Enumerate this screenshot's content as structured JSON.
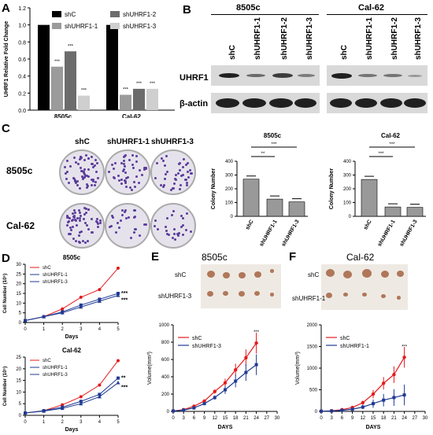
{
  "panels": {
    "A": "A",
    "B": "B",
    "C": "C",
    "D": "D",
    "E": "E",
    "F": "F"
  },
  "chart_a": {
    "type": "bar",
    "ylabel": "UHRF1 Relative Fold Change",
    "categories": [
      "8505c",
      "Cal-62"
    ],
    "series": [
      {
        "name": "shC",
        "values": [
          1.0,
          1.0
        ],
        "color": "#000000"
      },
      {
        "name": "shUHRF1-1",
        "values": [
          0.51,
          0.18
        ],
        "color": "#9b9b9b"
      },
      {
        "name": "shUHRF1-2",
        "values": [
          0.69,
          0.25
        ],
        "color": "#6c6c6c"
      },
      {
        "name": "shUHRF1-3",
        "values": [
          0.17,
          0.25
        ],
        "color": "#cfcfcf"
      }
    ],
    "ylim": [
      0,
      1.2
    ],
    "yticks": [
      "0.0",
      "0.2",
      "0.4",
      "0.6",
      "0.8",
      "1.0",
      "1.2"
    ],
    "significance": "***"
  },
  "blot": {
    "groups": [
      "8505c",
      "Cal-62"
    ],
    "lanes": [
      "shC",
      "shUHRF1-1",
      "shUHRF1-2",
      "shUHRF1-3"
    ],
    "rows": [
      "UHRF1",
      "β-actin"
    ]
  },
  "colony_images": {
    "columns": [
      "shC",
      "shUHRF1-1",
      "shUHRF1-3"
    ],
    "rows": [
      "8505c",
      "Cal-62"
    ]
  },
  "chart_c1": {
    "type": "bar",
    "title": "8505c",
    "ylabel": "Colony Number",
    "categories": [
      "shC",
      "shUHRF1-1",
      "shUHRF1-3"
    ],
    "values": [
      270,
      125,
      105
    ],
    "ylim": [
      0,
      400
    ],
    "yticks": [
      "0",
      "100",
      "200",
      "300",
      "400"
    ],
    "sig": [
      "**",
      "***"
    ]
  },
  "chart_c2": {
    "type": "bar",
    "title": "Cal-62",
    "ylabel": "Colony Number",
    "categories": [
      "shC",
      "shUHRF1-1",
      "shUHRF1-3"
    ],
    "values": [
      268,
      68,
      65
    ],
    "ylim": [
      0,
      400
    ],
    "yticks": [
      "0",
      "100",
      "200",
      "300",
      "400"
    ],
    "sig": [
      "***",
      "***"
    ]
  },
  "chart_d1": {
    "type": "line",
    "title": "8505c",
    "xlabel": "Days",
    "ylabel": "Cell Number (10⁵)",
    "x": [
      0,
      1,
      2,
      3,
      4,
      5
    ],
    "ylim": [
      0,
      30
    ],
    "yticks": [
      "0",
      "5",
      "10",
      "15",
      "20",
      "25",
      "30"
    ],
    "series": [
      {
        "name": "shC",
        "values": [
          1,
          3,
          7,
          13,
          17,
          28
        ],
        "color": "#e41a1c"
      },
      {
        "name": "shUHRF1-1",
        "values": [
          1,
          3,
          5.5,
          9,
          12,
          15
        ],
        "color": "#1f3a93"
      },
      {
        "name": "shUHRF1-3",
        "values": [
          1,
          3,
          5,
          8,
          11,
          14
        ],
        "color": "#1f3a93"
      }
    ],
    "sig": "***"
  },
  "chart_d2": {
    "type": "line",
    "title": "Cal-62",
    "xlabel": "Days",
    "ylabel": "Cell Number (10⁵)",
    "x": [
      0,
      1,
      2,
      3,
      4,
      5
    ],
    "ylim": [
      0,
      25
    ],
    "yticks": [
      "0",
      "5",
      "10",
      "15",
      "20",
      "25"
    ],
    "series": [
      {
        "name": "shC",
        "values": [
          1,
          2,
          4.5,
          8,
          13,
          23.5
        ],
        "color": "#e41a1c"
      },
      {
        "name": "shUHRF1-1",
        "values": [
          1,
          2,
          3.5,
          6,
          9,
          16
        ],
        "color": "#1f3a93"
      },
      {
        "name": "shUHRF1-3",
        "values": [
          1,
          1.8,
          3,
          5,
          8,
          14
        ],
        "color": "#1f3a93"
      }
    ],
    "sig": [
      "**",
      "***"
    ]
  },
  "tumor_e": {
    "title": "8505c",
    "rows": [
      "shC",
      "shUHRF1-3"
    ]
  },
  "tumor_f": {
    "title": "Cal-62",
    "rows": [
      "shC",
      "shUHRF1-1"
    ]
  },
  "chart_e": {
    "type": "line",
    "xlabel": "DAYS",
    "ylabel": "Volume(mm³)",
    "x": [
      0,
      3,
      6,
      9,
      12,
      15,
      18,
      21,
      24
    ],
    "xlim": [
      0,
      30
    ],
    "xticks": [
      "0",
      "3",
      "6",
      "9",
      "12",
      "15",
      "18",
      "21",
      "24",
      "27",
      "30"
    ],
    "ylim": [
      0,
      1000
    ],
    "yticks": [
      "0",
      "200",
      "400",
      "600",
      "800",
      "1000"
    ],
    "series": [
      {
        "name": "shC",
        "values": [
          5,
          20,
          60,
          120,
          230,
          330,
          480,
          620,
          790
        ],
        "color": "#e41a1c"
      },
      {
        "name": "shUHRF1-3",
        "values": [
          5,
          15,
          40,
          90,
          160,
          250,
          350,
          450,
          540
        ],
        "color": "#1f3a93"
      }
    ],
    "sig": "***"
  },
  "chart_f": {
    "type": "line",
    "xlabel": "DAYS",
    "ylabel": "Volume(mm³)",
    "x": [
      0,
      3,
      6,
      9,
      12,
      15,
      18,
      21,
      24
    ],
    "xlim": [
      0,
      30
    ],
    "xticks": [
      "0",
      "3",
      "6",
      "9",
      "12",
      "15",
      "18",
      "21",
      "24",
      "27",
      "30"
    ],
    "ylim": [
      0,
      2000
    ],
    "yticks": [
      "0",
      "500",
      "1000",
      "1500",
      "2000"
    ],
    "series": [
      {
        "name": "shC",
        "values": [
          5,
          15,
          40,
          90,
          200,
          400,
          650,
          850,
          1250
        ],
        "color": "#e41a1c"
      },
      {
        "name": "shUHRF1-1",
        "values": [
          5,
          10,
          25,
          50,
          100,
          180,
          260,
          320,
          380
        ],
        "color": "#1f3a93"
      }
    ],
    "sig": "***"
  }
}
